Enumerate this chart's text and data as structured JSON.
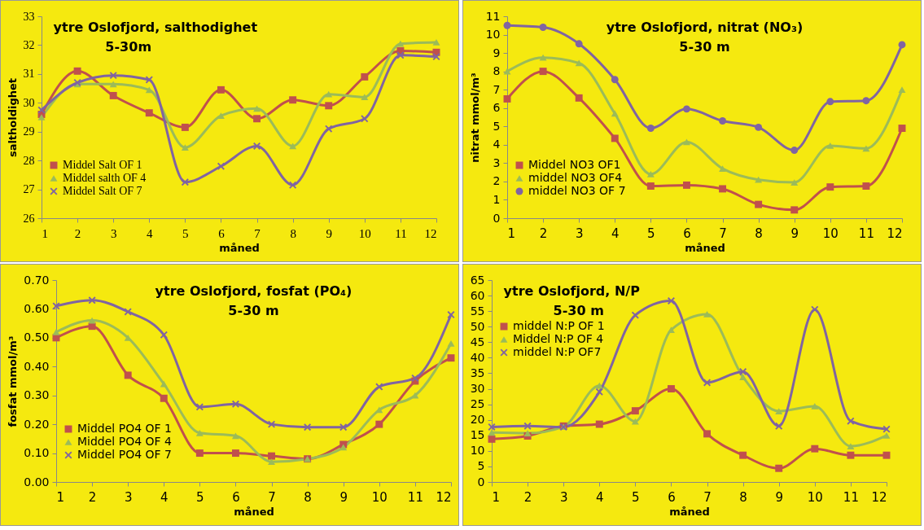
{
  "chart_data": [
    {
      "type": "line",
      "title": "ytre Oslofjord, salthodighet",
      "subtitle": "5-30m",
      "xlabel": "måned",
      "ylabel": "saltholdighet",
      "x": [
        1,
        2,
        3,
        4,
        5,
        6,
        7,
        8,
        9,
        10,
        11,
        12
      ],
      "xlim": [
        1,
        12
      ],
      "xticks": [
        1,
        2,
        3,
        4,
        5,
        6,
        7,
        8,
        9,
        10,
        11,
        12
      ],
      "ylim": [
        26,
        33
      ],
      "yticks": [
        26,
        27,
        28,
        29,
        30,
        31,
        32,
        33
      ],
      "legend": "bottom left",
      "series": [
        {
          "name": "Middel Salt OF 1",
          "color": "#c0504d",
          "marker": "square",
          "values": [
            29.6,
            31.1,
            30.25,
            29.65,
            29.15,
            30.45,
            29.45,
            30.1,
            29.9,
            30.9,
            31.8,
            31.75
          ]
        },
        {
          "name": "Middel salth OF 4",
          "color": "#9bbb59",
          "marker": "triangle",
          "values": [
            29.5,
            30.65,
            30.65,
            30.45,
            28.45,
            29.55,
            29.8,
            28.5,
            30.3,
            30.2,
            32.05,
            32.1
          ]
        },
        {
          "name": "Middel Salt OF 7",
          "color": "#8064a2",
          "marker": "cross",
          "values": [
            29.75,
            30.7,
            30.95,
            30.8,
            27.25,
            27.8,
            28.5,
            27.15,
            29.1,
            29.45,
            31.65,
            31.6
          ]
        }
      ]
    },
    {
      "type": "line",
      "title": "ytre Oslofjord, nitrat (NO₃)",
      "subtitle": "5-30 m",
      "xlabel": "måned",
      "ylabel": "nitrat mmol/m³",
      "x": [
        1,
        2,
        3,
        4,
        5,
        6,
        7,
        8,
        9,
        10,
        11,
        12
      ],
      "xlim": [
        1,
        12
      ],
      "xticks": [
        1,
        2,
        3,
        4,
        5,
        6,
        7,
        8,
        9,
        10,
        11,
        12
      ],
      "ylim": [
        0,
        11
      ],
      "yticks": [
        0,
        1,
        2,
        3,
        4,
        5,
        6,
        7,
        8,
        9,
        10,
        11
      ],
      "legend": "bottom left",
      "series": [
        {
          "name": "Middel NO3 OF1",
          "color": "#c0504d",
          "marker": "square",
          "values": [
            6.5,
            8.0,
            6.55,
            4.35,
            1.75,
            1.8,
            1.6,
            0.75,
            0.45,
            1.7,
            1.75,
            4.9
          ]
        },
        {
          "name": "middel NO3  OF4",
          "color": "#9bbb59",
          "marker": "triangle",
          "values": [
            8.0,
            8.75,
            8.45,
            5.7,
            2.4,
            4.15,
            2.7,
            2.1,
            1.95,
            3.95,
            3.8,
            7.0
          ]
        },
        {
          "name": "middel NO3 OF 7",
          "color": "#8064a2",
          "marker": "circle",
          "values": [
            10.5,
            10.4,
            9.5,
            7.55,
            4.9,
            5.95,
            5.3,
            4.95,
            3.7,
            6.35,
            6.4,
            9.45
          ]
        }
      ]
    },
    {
      "type": "line",
      "title": "ytre Oslofjord, fosfat (PO₄)",
      "subtitle": "5-30 m",
      "xlabel": "måned",
      "ylabel": "fosfat mmol/m³",
      "x": [
        1,
        2,
        3,
        4,
        5,
        6,
        7,
        8,
        9,
        10,
        11,
        12
      ],
      "xlim": [
        1,
        12
      ],
      "xticks": [
        1,
        2,
        3,
        4,
        5,
        6,
        7,
        8,
        9,
        10,
        11,
        12
      ],
      "ylim": [
        0,
        0.7
      ],
      "yticks": [
        {
          "value": 0,
          "label": "0.00"
        },
        {
          "value": 0.1,
          "label": "0.10"
        },
        {
          "value": 0.2,
          "label": "0.20"
        },
        {
          "value": 0.3,
          "label": "0.30"
        },
        {
          "value": 0.4,
          "label": "0.40"
        },
        {
          "value": 0.5,
          "label": "0.50"
        },
        {
          "value": 0.6,
          "label": "0.60"
        },
        {
          "value": 0.7,
          "label": "0.70"
        }
      ],
      "legend": "bottom left",
      "series": [
        {
          "name": "Middel PO4 OF 1",
          "color": "#c0504d",
          "marker": "square",
          "values": [
            0.5,
            0.54,
            0.37,
            0.29,
            0.1,
            0.1,
            0.09,
            0.08,
            0.13,
            0.2,
            0.35,
            0.43
          ]
        },
        {
          "name": "Middel PO4  OF 4",
          "color": "#9bbb59",
          "marker": "triangle",
          "values": [
            0.52,
            0.56,
            0.5,
            0.34,
            0.17,
            0.16,
            0.07,
            0.08,
            0.12,
            0.25,
            0.3,
            0.48
          ]
        },
        {
          "name": "Middel PO4 OF 7",
          "color": "#8064a2",
          "marker": "cross",
          "values": [
            0.61,
            0.63,
            0.59,
            0.51,
            0.26,
            0.27,
            0.2,
            0.19,
            0.19,
            0.33,
            0.36,
            0.58
          ]
        }
      ]
    },
    {
      "type": "line",
      "title": "ytre Oslofjord, N/P",
      "subtitle": "5-30 m",
      "xlabel": "måned",
      "x": [
        1,
        2,
        3,
        4,
        5,
        6,
        7,
        8,
        9,
        10,
        11,
        12
      ],
      "xlim": [
        1,
        12
      ],
      "xticks": [
        1,
        2,
        3,
        4,
        5,
        6,
        7,
        8,
        9,
        10,
        11,
        12
      ],
      "ylim": [
        0,
        65
      ],
      "yticks": [
        0,
        5,
        10,
        15,
        20,
        25,
        30,
        35,
        40,
        45,
        50,
        55,
        60,
        65
      ],
      "legend": "top left",
      "series": [
        {
          "name": "middel N:P OF 1",
          "color": "#c0504d",
          "marker": "square",
          "values": [
            13.8,
            14.8,
            18,
            18.6,
            22.9,
            30,
            15.5,
            8.6,
            4.4,
            10.7,
            8.6,
            8.6
          ]
        },
        {
          "name": "Middel N:P OF 4",
          "color": "#9bbb59",
          "marker": "triangle",
          "values": [
            15.9,
            15.7,
            17.8,
            31,
            19.5,
            49,
            54,
            33.8,
            22.8,
            24.4,
            11.5,
            15
          ]
        },
        {
          "name": "middel N:P OF7",
          "color": "#8064a2",
          "marker": "cross",
          "values": [
            17.7,
            18,
            17.7,
            29,
            53.7,
            58.3,
            32,
            35.5,
            18,
            55.5,
            19.6,
            17
          ]
        }
      ]
    }
  ]
}
